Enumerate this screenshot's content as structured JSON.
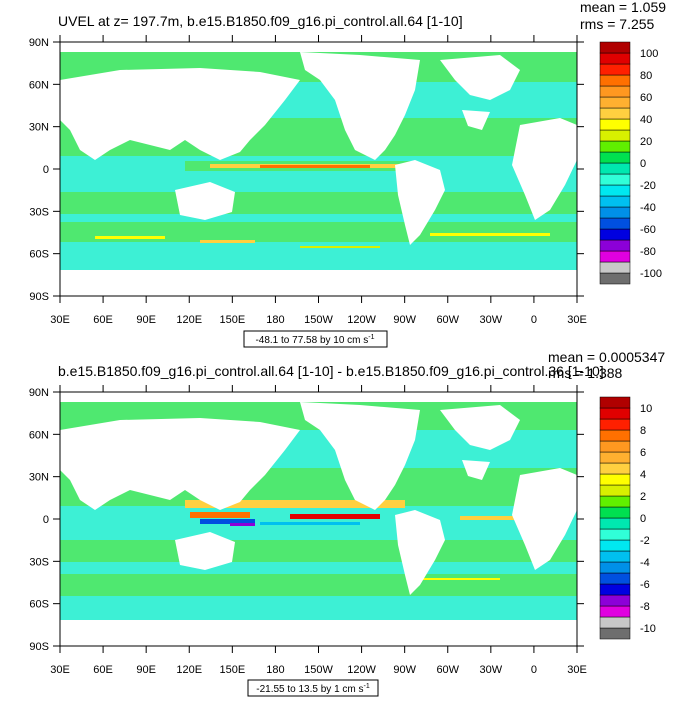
{
  "panels": [
    {
      "title": "UVEL at z= 197.7m, b.e15.B1850.f09_g16.pi_control.all.64 [1-10]",
      "mean": "mean = 1.059",
      "rms": "rms = 7.255",
      "range_note": "-48.1 to 77.58 by 10 cm s",
      "range_sup": "-1",
      "colorbar_labels": [
        "100",
        "80",
        "60",
        "40",
        "20",
        "0",
        "-20",
        "-40",
        "-60",
        "-80",
        "-100"
      ]
    },
    {
      "title": "b.e15.B1850.f09_g16.pi_control.all.64 [1-10] - b.e15.B1850.f09_g16.pi_control.36 [1-10]",
      "mean": "mean = 0.0005347",
      "rms": "rms = 1.388",
      "range_note": "-21.55 to 13.5 by 1 cm s",
      "range_sup": "-1",
      "colorbar_labels": [
        "10",
        "8",
        "6",
        "4",
        "2",
        "0",
        "-2",
        "-4",
        "-6",
        "-8",
        "-10"
      ]
    }
  ],
  "lat_labels": [
    "90N",
    "60N",
    "30N",
    "0",
    "30S",
    "60S",
    "90S"
  ],
  "lon_labels": [
    "30E",
    "60E",
    "90E",
    "120E",
    "150E",
    "180",
    "150W",
    "120W",
    "90W",
    "60W",
    "30W",
    "0",
    "30E"
  ],
  "colors": {
    "palette": [
      "#6e6e6e",
      "#c8c8c8",
      "#e000e0",
      "#8c00d8",
      "#0000e0",
      "#0050e0",
      "#0090e8",
      "#00c0f0",
      "#00e8f0",
      "#30ffd8",
      "#00e8b0",
      "#00e050",
      "#60f000",
      "#d8f000",
      "#ffff00",
      "#ffd040",
      "#ffb030",
      "#ff9820",
      "#ff7000",
      "#ff2000",
      "#e00000",
      "#b00000"
    ],
    "ocean": "#3df0d5",
    "ocean_band": "#4fe870"
  }
}
